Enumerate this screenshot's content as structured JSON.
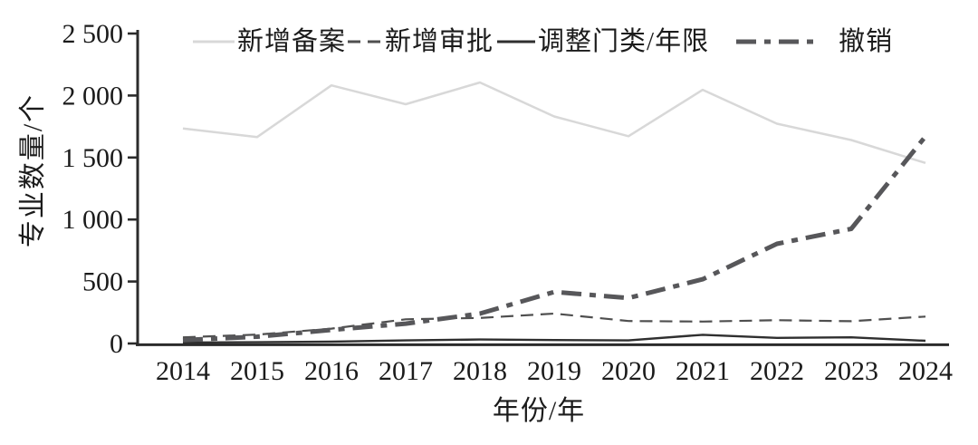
{
  "chart_data": {
    "type": "line",
    "title": "",
    "xlabel": "年份/年",
    "ylabel": "专业数量/个",
    "categories": [
      "2014",
      "2015",
      "2016",
      "2017",
      "2018",
      "2019",
      "2020",
      "2021",
      "2022",
      "2023",
      "2024"
    ],
    "ylim": [
      0,
      2500
    ],
    "y_ticks": [
      0,
      500,
      1000,
      1500,
      2000,
      2500
    ],
    "y_tick_labels": [
      "0",
      "500",
      "1 000",
      "1 500",
      "2 000",
      "2 500"
    ],
    "grid": false,
    "legend_position": "top-center",
    "axis_color": "#2b2b2b",
    "text_color": "#1b1b1b",
    "series": [
      {
        "id": "new-filed",
        "name": "新增备案",
        "values": [
          1735,
          1665,
          2082,
          1930,
          2105,
          1831,
          1672,
          2046,
          1773,
          1641,
          1456
        ],
        "color": "#d8d8d8",
        "width": 2.5,
        "dash": "",
        "sample_width": 46
      },
      {
        "id": "new-approved",
        "name": "新增审批",
        "values": [
          50,
          72,
          120,
          195,
          206,
          241,
          181,
          177,
          188,
          180,
          217
        ],
        "color": "#4f4f4f",
        "width": 2.2,
        "dash": "14,8",
        "sample_width": 38
      },
      {
        "id": "adjusted-category-duration",
        "name": "调整门类/年限",
        "values": [
          8,
          10,
          15,
          25,
          32,
          28,
          25,
          70,
          45,
          50,
          22
        ],
        "color": "#2f2f2f",
        "width": 2.4,
        "dash": "",
        "sample_width": 42
      },
      {
        "id": "revoked",
        "name": "撤销",
        "values": [
          28,
          55,
          110,
          160,
          241,
          416,
          367,
          518,
          804,
          925,
          1670
        ],
        "color": "#57575a",
        "width": 5,
        "dash": "22,9,7,9",
        "sample_width": 92
      }
    ]
  }
}
